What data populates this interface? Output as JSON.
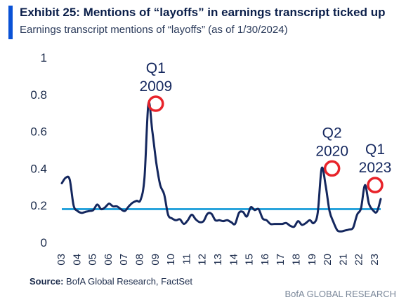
{
  "header": {
    "title": "Exhibit 25: Mentions of “layoffs” in earnings transcript ticked up",
    "subtitle": "Earnings transcript mentions of “layoffs” (as of 1/30/2024)"
  },
  "footer": {
    "source_label": "Source:",
    "source_text": " BofA Global Research, FactSet",
    "brand": "BofA GLOBAL RESEARCH"
  },
  "colors": {
    "accent": "#0a52d6",
    "series": "#14275e",
    "reference": "#2aa4dc",
    "highlight": "#e8232a",
    "text": "#1b2b4b"
  },
  "chart_data": {
    "type": "line",
    "title": "Exhibit 25: Mentions of “layoffs” in earnings transcript ticked up",
    "ylim": [
      0,
      1
    ],
    "yticks": [
      "0",
      "0.2",
      "0.4",
      "0.6",
      "0.8",
      "1"
    ],
    "xticks": [
      "03",
      "04",
      "05",
      "06",
      "07",
      "08",
      "09",
      "10",
      "11",
      "12",
      "13",
      "14",
      "15",
      "16",
      "17",
      "18",
      "19",
      "20",
      "21",
      "22",
      "23"
    ],
    "x_start_year": 2003,
    "grid": false,
    "series": [
      {
        "values": [
          0.32,
          0.35,
          0.34,
          0.2,
          0.17,
          0.16,
          0.165,
          0.17,
          0.175,
          0.205,
          0.18,
          0.19,
          0.21,
          0.195,
          0.195,
          0.18,
          0.17,
          0.195,
          0.215,
          0.225,
          0.23,
          0.35,
          0.75,
          0.6,
          0.43,
          0.31,
          0.26,
          0.15,
          0.13,
          0.12,
          0.125,
          0.1,
          0.12,
          0.15,
          0.125,
          0.11,
          0.115,
          0.155,
          0.155,
          0.12,
          0.12,
          0.115,
          0.12,
          0.11,
          0.1,
          0.16,
          0.165,
          0.14,
          0.19,
          0.175,
          0.18,
          0.13,
          0.12,
          0.1,
          0.1,
          0.1,
          0.1,
          0.105,
          0.09,
          0.085,
          0.115,
          0.095,
          0.105,
          0.12,
          0.105,
          0.16,
          0.4,
          0.31,
          0.17,
          0.11,
          0.065,
          0.06,
          0.065,
          0.07,
          0.08,
          0.15,
          0.185,
          0.31,
          0.21,
          0.175,
          0.165,
          0.235
        ]
      },
      {
        "type": "reference-line",
        "value": 0.18
      }
    ],
    "annotations": [
      {
        "label_line1": "Q1",
        "label_line2": "2009",
        "x": 2009.0,
        "y": 0.75
      },
      {
        "label_line1": "Q2",
        "label_line2": "2020",
        "x": 2020.25,
        "y": 0.4
      },
      {
        "label_line1": "Q1",
        "label_line2": "2023",
        "x": 2023.0,
        "y": 0.31
      }
    ]
  }
}
